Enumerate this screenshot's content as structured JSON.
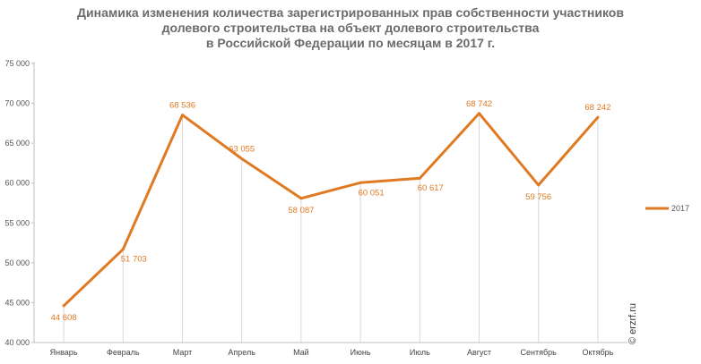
{
  "title_lines": [
    "Динамика изменения количества зарегистрированных прав собственности участников",
    "долевого строительства на объект долевого строительства",
    "в Российской Федерации по месяцам в 2017 г."
  ],
  "watermark": "© erzrf.ru",
  "colors": {
    "series": "#e07a22",
    "grid": "#d9d9d9",
    "axis": "#bfbfbf"
  },
  "chart_data": {
    "type": "line",
    "title": "Динамика изменения количества зарегистрированных прав собственности участников долевого строительства на объект долевого строительства в Российской Федерации по месяцам в 2017 г.",
    "categories": [
      "Январь",
      "Февраль",
      "Март",
      "Апрель",
      "Май",
      "Июнь",
      "Июль",
      "Август",
      "Сентябрь",
      "Октябрь"
    ],
    "series": [
      {
        "name": "2017",
        "values": [
          44608,
          51703,
          68536,
          63055,
          58087,
          60051,
          60617,
          68742,
          59756,
          68242
        ],
        "labels": [
          "44 608",
          "51 703",
          "68 536",
          "63 055",
          "58 087",
          "60 051",
          "60 617",
          "68 742",
          "59 756",
          "68 242"
        ]
      }
    ],
    "ylim": [
      40000,
      75000
    ],
    "yticks": [
      40000,
      45000,
      50000,
      55000,
      60000,
      65000,
      70000,
      75000
    ],
    "ytick_labels": [
      "40 000",
      "45 000",
      "50 000",
      "55 000",
      "60 000",
      "65 000",
      "70 000",
      "75 000"
    ],
    "grid": "vertical",
    "legend_position": "right",
    "xlabel": "",
    "ylabel": ""
  }
}
